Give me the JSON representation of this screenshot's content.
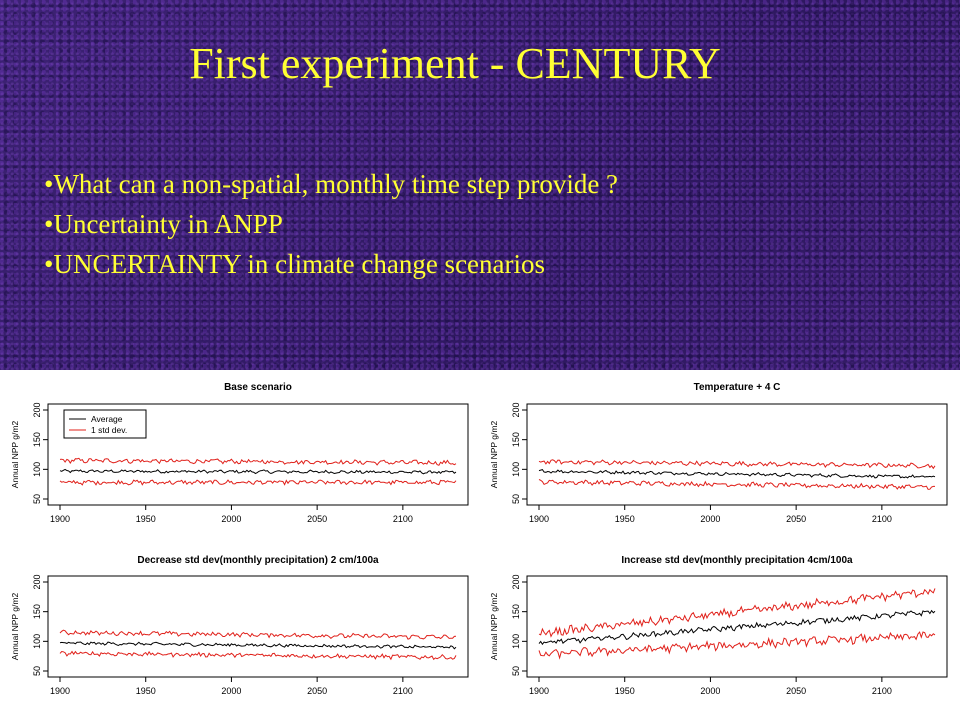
{
  "slide": {
    "title": "First experiment - CENTURY",
    "bullets": [
      "What can a non-spatial, monthly time step provide ?",
      "Uncertainty in ANPP",
      "UNCERTAINTY in climate change scenarios"
    ]
  },
  "colors": {
    "title": "#ffff33",
    "average": "#000000",
    "std_dev": "#e0201a"
  },
  "legend": {
    "average": "Average",
    "std_dev": "1 std dev."
  },
  "chart_data": [
    {
      "type": "line",
      "title": "Base scenario",
      "ylabel": "Annual NPP g/m2",
      "xlabel": "",
      "xlim": [
        1900,
        2131
      ],
      "ylim": [
        50,
        200
      ],
      "x_ticks": [
        1900,
        1950,
        2000,
        2050,
        2100
      ],
      "y_ticks": [
        50,
        100,
        150,
        200
      ],
      "legend_position": "top-left",
      "series": [
        {
          "name": "Average",
          "color": "#000000",
          "x": [
            1900,
            2131
          ],
          "values": [
            97,
            95
          ]
        },
        {
          "name": "1 std dev.",
          "color": "#e0201a",
          "x": [
            1900,
            2131
          ],
          "values": [
            115,
            111
          ]
        },
        {
          "color": "#e0201a",
          "x": [
            1900,
            2131
          ],
          "values": [
            78,
            78
          ]
        }
      ]
    },
    {
      "type": "line",
      "title": "Temperature + 4 C",
      "ylabel": "Annual NPP g/m2",
      "xlabel": "",
      "xlim": [
        1900,
        2131
      ],
      "ylim": [
        50,
        200
      ],
      "x_ticks": [
        1900,
        1950,
        2000,
        2050,
        2100
      ],
      "y_ticks": [
        50,
        100,
        150,
        200
      ],
      "series": [
        {
          "color": "#000000",
          "x": [
            1900,
            2131
          ],
          "values": [
            97,
            87
          ]
        },
        {
          "color": "#e0201a",
          "x": [
            1900,
            2131
          ],
          "values": [
            113,
            106
          ]
        },
        {
          "color": "#e0201a",
          "x": [
            1900,
            2131
          ],
          "values": [
            79,
            70
          ]
        }
      ]
    },
    {
      "type": "line",
      "title": "Decrease std dev(monthly precipitation) 2 cm/100a",
      "ylabel": "Annual NPP g/m2",
      "xlabel": "",
      "xlim": [
        1900,
        2131
      ],
      "ylim": [
        50,
        200
      ],
      "x_ticks": [
        1900,
        1950,
        2000,
        2050,
        2100
      ],
      "y_ticks": [
        50,
        100,
        150,
        200
      ],
      "series": [
        {
          "color": "#000000",
          "x": [
            1900,
            2131
          ],
          "values": [
            97,
            90
          ]
        },
        {
          "color": "#e0201a",
          "x": [
            1900,
            2131
          ],
          "values": [
            115,
            107
          ]
        },
        {
          "color": "#e0201a",
          "x": [
            1900,
            2131
          ],
          "values": [
            80,
            73
          ]
        }
      ]
    },
    {
      "type": "line",
      "title": "Increase std dev(monthly precipitation 4cm/100a",
      "ylabel": "Annual NPP g/m2",
      "xlabel": "",
      "xlim": [
        1900,
        2131
      ],
      "ylim": [
        50,
        200
      ],
      "x_ticks": [
        1900,
        1950,
        2000,
        2050,
        2100
      ],
      "y_ticks": [
        50,
        100,
        150,
        200
      ],
      "series": [
        {
          "color": "#000000",
          "x": [
            1900,
            2131
          ],
          "values": [
            97,
            150
          ]
        },
        {
          "color": "#e0201a",
          "x": [
            1900,
            2131
          ],
          "values": [
            113,
            185
          ]
        },
        {
          "color": "#e0201a",
          "x": [
            1900,
            2131
          ],
          "values": [
            78,
            110
          ]
        }
      ]
    }
  ]
}
